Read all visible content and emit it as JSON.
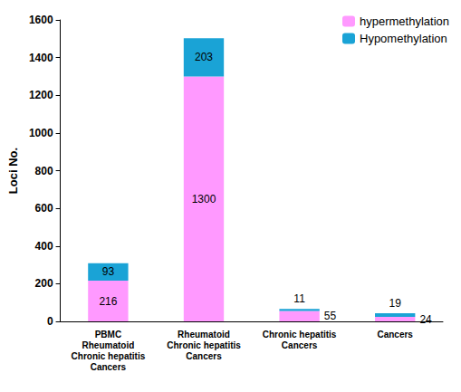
{
  "chart_data": {
    "type": "bar",
    "y_label": "Loci No.",
    "categories": [
      "PBMC\nRheumatoid\nChronic hepatitis\nCancers",
      "Rheumatoid\nChronic hepatitis\nCancers",
      "Chronic hepatitis\nCancers",
      "Cancers"
    ],
    "series": [
      {
        "name": "hypermethylation",
        "color": "#ff99ff",
        "values": [
          216,
          1300,
          55,
          24
        ]
      },
      {
        "name": "Hypomethylation",
        "color": "#1aa3d6",
        "values": [
          93,
          203,
          11,
          19
        ]
      }
    ],
    "stacked": true,
    "data_labels": true,
    "legend": "upper right",
    "grid": false,
    "ylim": [
      0,
      1600
    ],
    "yticks": [
      0,
      200,
      400,
      600,
      800,
      1000,
      1200,
      1400,
      1600
    ]
  }
}
